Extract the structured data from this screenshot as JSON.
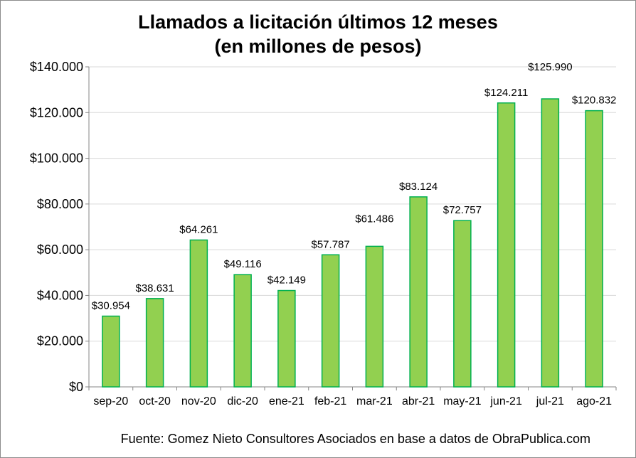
{
  "chart_data": {
    "type": "bar",
    "title": "Llamados a licitación últimos 12 meses",
    "subtitle": "(en millones de pesos)",
    "categories": [
      "sep-20",
      "oct-20",
      "nov-20",
      "dic-20",
      "ene-21",
      "feb-21",
      "mar-21",
      "abr-21",
      "may-21",
      "jun-21",
      "jul-21",
      "ago-21"
    ],
    "values": [
      30954,
      38631,
      64261,
      49116,
      42149,
      57787,
      61486,
      83124,
      72757,
      124211,
      125990,
      120832
    ],
    "data_labels": [
      "$30.954",
      "$38.631",
      "$64.261",
      "$49.116",
      "$42.149",
      "$57.787",
      "$61.486",
      "$83.124",
      "$72.757",
      "$124.211",
      "$125.990",
      "$120.832"
    ],
    "y_ticks": [
      0,
      20000,
      40000,
      60000,
      80000,
      100000,
      120000,
      140000
    ],
    "y_tick_labels": [
      "$0",
      "$20.000",
      "$40.000",
      "$60.000",
      "$80.000",
      "$100.000",
      "$120.000",
      "$140.000"
    ],
    "ylim": [
      0,
      140000
    ],
    "xlabel": "",
    "ylabel": "",
    "grid": true,
    "legend": "none",
    "bar_color": "#92d050",
    "bar_border_color": "#00b050",
    "grid_color": "#d9d9d9",
    "axis_color": "#868686"
  },
  "footer": {
    "source": "Fuente: Gomez Nieto Consultores Asociados en base a datos de ObraPublica.com"
  }
}
